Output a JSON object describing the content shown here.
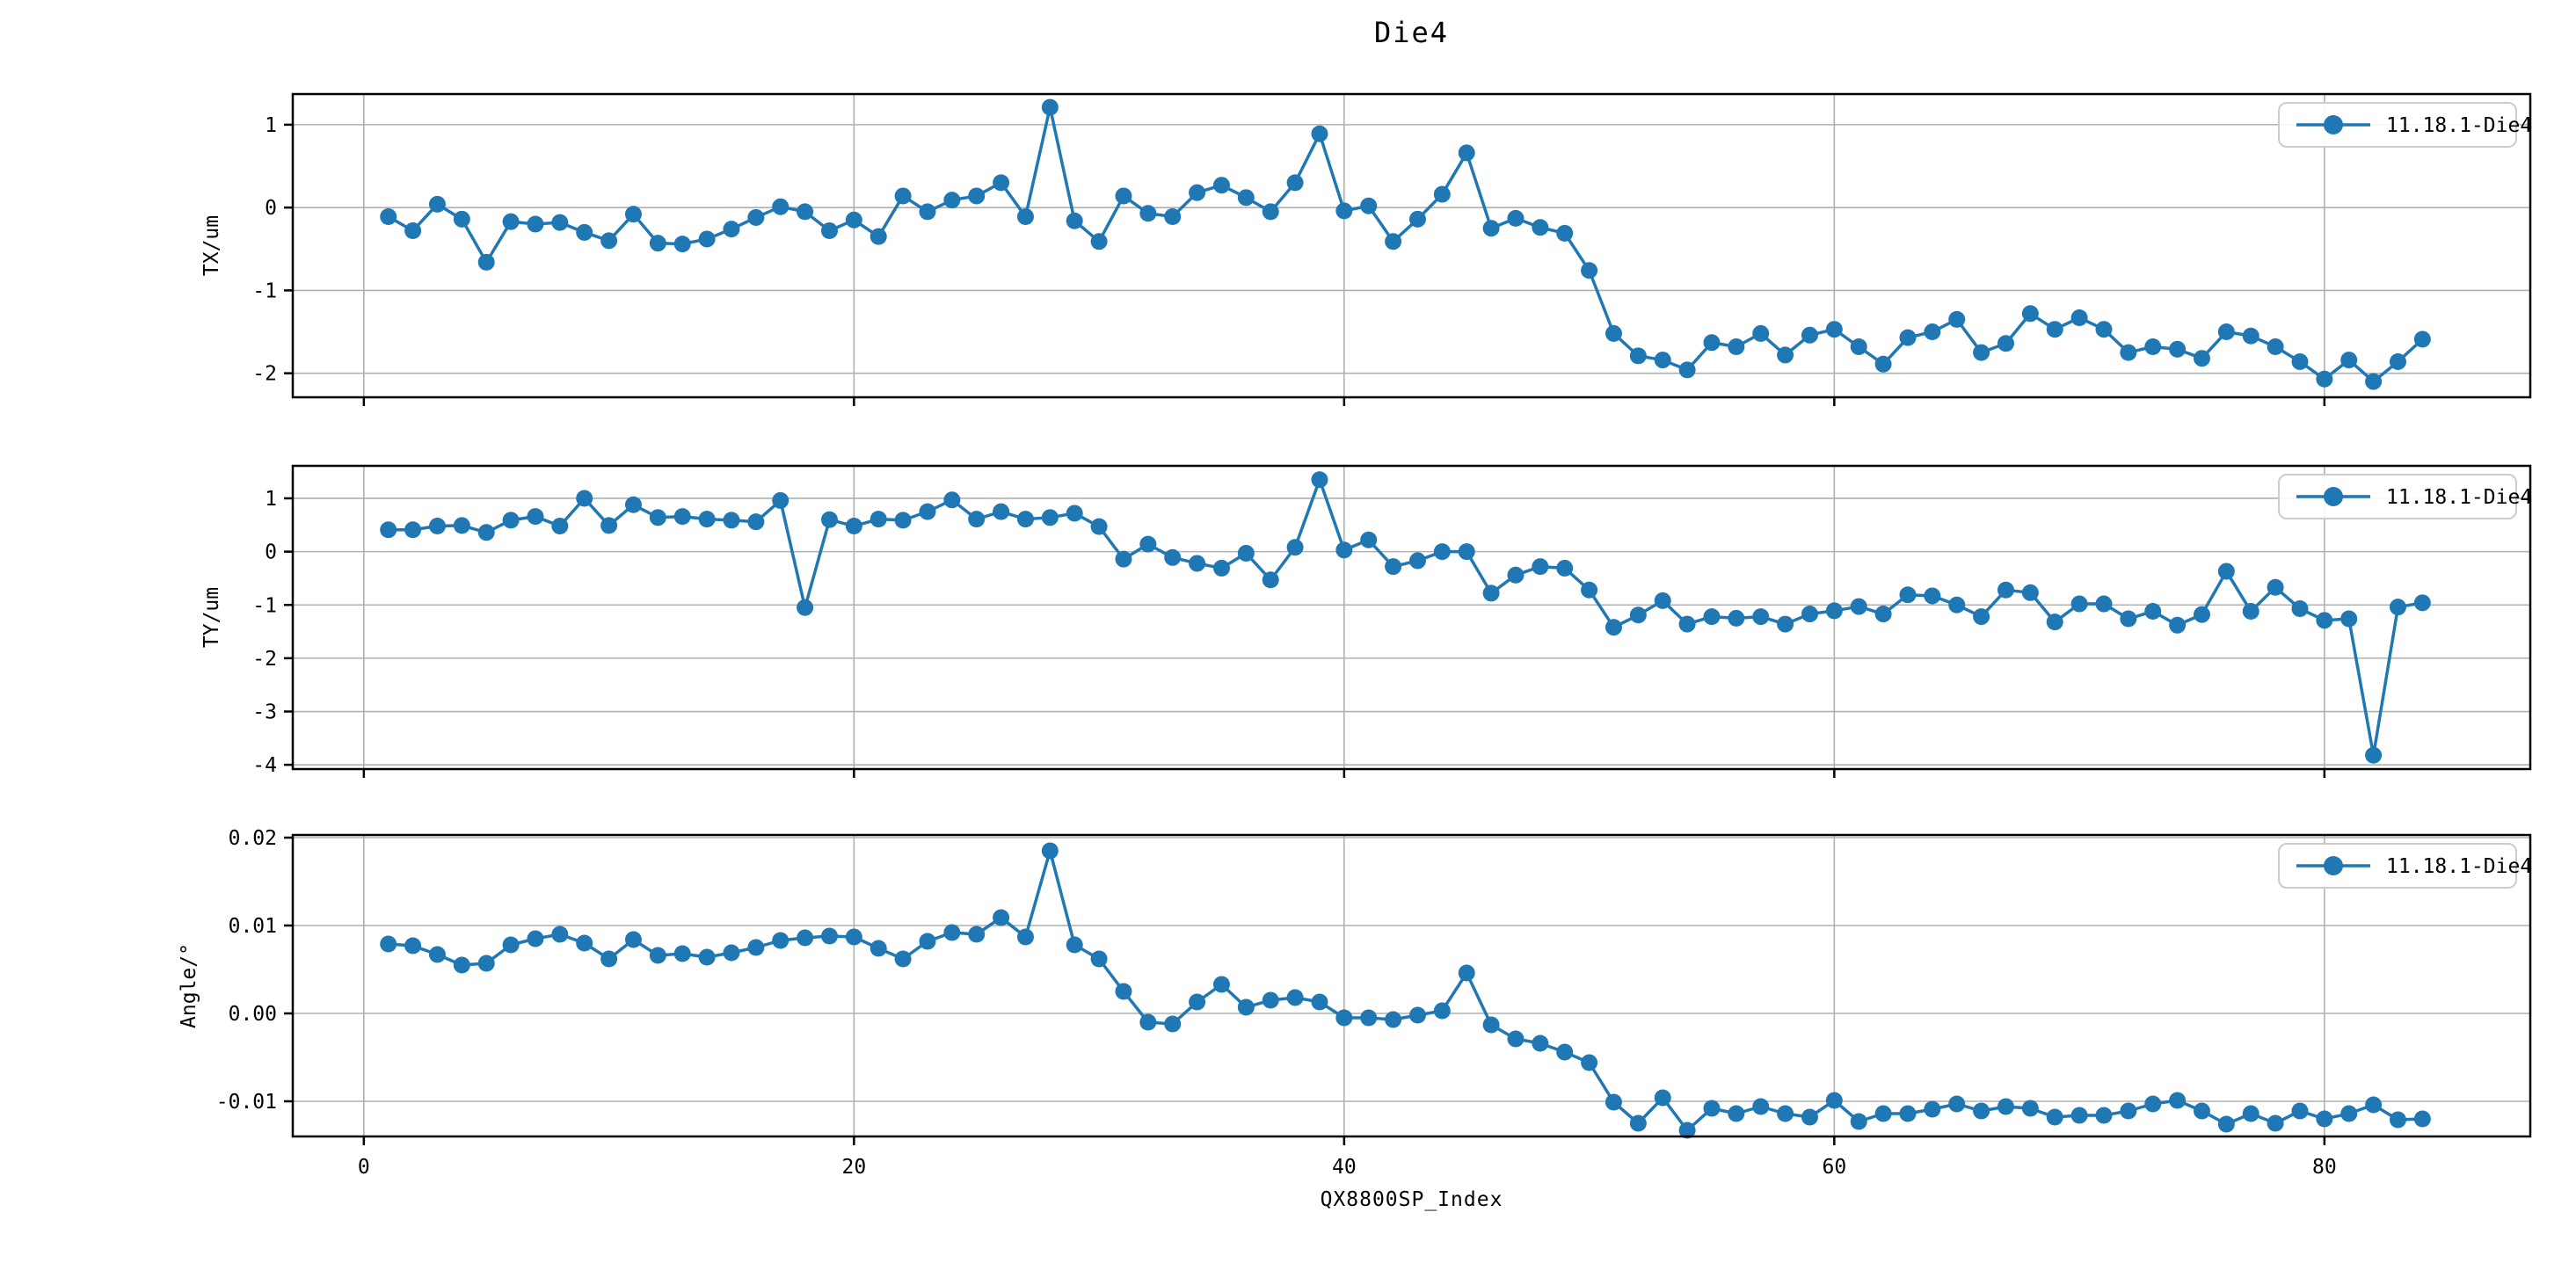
{
  "figure": {
    "title": "Die4",
    "xlabel": "QX8800SP_Index",
    "legend_label": "11.18.1-Die4",
    "colors": {
      "line": "#1f77b4",
      "grid": "#b0b0b0",
      "frame": "#000000",
      "text": "#000000",
      "legend_border": "#cccccc",
      "background": "#ffffff"
    }
  },
  "chart_data": [
    {
      "type": "line",
      "name": "TX",
      "title": "Die4",
      "ylabel": "TX/um",
      "legend": "11.18.1-Die4",
      "x_range": [
        1,
        84
      ],
      "x_ticks": [
        "0",
        "20",
        "40",
        "60",
        "80"
      ],
      "x_tick_values": [
        0,
        20,
        40,
        60,
        80
      ],
      "xlim": [
        -2.9,
        88.4
      ],
      "y_ticks": [
        "1",
        "0",
        "-1",
        "-2"
      ],
      "y_tick_values": [
        1,
        0,
        -1,
        -2
      ],
      "ylim": [
        -2.29,
        1.37
      ],
      "grid": true,
      "legend_position": "upper right",
      "values": [
        -0.11,
        -0.28,
        0.04,
        -0.14,
        -0.66,
        -0.17,
        -0.2,
        -0.18,
        -0.3,
        -0.4,
        -0.08,
        -0.43,
        -0.44,
        -0.38,
        -0.26,
        -0.12,
        0.01,
        -0.05,
        -0.28,
        -0.15,
        -0.35,
        0.14,
        -0.05,
        0.09,
        0.14,
        0.3,
        -0.11,
        1.21,
        -0.16,
        -0.41,
        0.14,
        -0.07,
        -0.11,
        0.18,
        0.27,
        0.12,
        -0.05,
        0.3,
        0.89,
        -0.04,
        0.02,
        -0.41,
        -0.14,
        0.16,
        0.66,
        -0.25,
        -0.13,
        -0.24,
        -0.31,
        -0.76,
        -1.52,
        -1.79,
        -1.84,
        -1.96,
        -1.63,
        -1.68,
        -1.52,
        -1.78,
        -1.54,
        -1.47,
        -1.68,
        -1.89,
        -1.57,
        -1.5,
        -1.35,
        -1.75,
        -1.64,
        -1.28,
        -1.47,
        -1.33,
        -1.47,
        -1.75,
        -1.68,
        -1.71,
        -1.82,
        -1.5,
        -1.55,
        -1.68,
        -1.86,
        -2.07,
        -1.84,
        -2.1,
        -1.86,
        -1.59
      ]
    },
    {
      "type": "line",
      "name": "TY",
      "title": "Die4",
      "ylabel": "TY/um",
      "legend": "11.18.1-Die4",
      "x_range": [
        1,
        84
      ],
      "x_ticks": [
        "0",
        "20",
        "40",
        "60",
        "80"
      ],
      "x_tick_values": [
        0,
        20,
        40,
        60,
        80
      ],
      "xlim": [
        -2.9,
        88.4
      ],
      "y_ticks": [
        "1",
        "0",
        "-1",
        "-2",
        "-3",
        "-4"
      ],
      "y_tick_values": [
        1,
        0,
        -1,
        -2,
        -3,
        -4
      ],
      "ylim": [
        -4.08,
        1.61
      ],
      "grid": true,
      "legend_position": "upper right",
      "values": [
        0.41,
        0.41,
        0.48,
        0.49,
        0.36,
        0.59,
        0.66,
        0.48,
        1.0,
        0.49,
        0.88,
        0.64,
        0.66,
        0.61,
        0.59,
        0.56,
        0.96,
        -1.05,
        0.6,
        0.48,
        0.61,
        0.59,
        0.75,
        0.97,
        0.61,
        0.75,
        0.61,
        0.64,
        0.72,
        0.47,
        -0.14,
        0.14,
        -0.11,
        -0.22,
        -0.31,
        -0.03,
        -0.53,
        0.08,
        1.35,
        0.03,
        0.22,
        -0.28,
        -0.17,
        0.0,
        0.0,
        -0.78,
        -0.44,
        -0.28,
        -0.31,
        -0.72,
        -1.42,
        -1.19,
        -0.92,
        -1.36,
        -1.22,
        -1.25,
        -1.22,
        -1.36,
        -1.17,
        -1.11,
        -1.03,
        -1.17,
        -0.81,
        -0.83,
        -1.0,
        -1.22,
        -0.72,
        -0.77,
        -1.32,
        -0.98,
        -0.98,
        -1.26,
        -1.12,
        -1.38,
        -1.18,
        -0.37,
        -1.12,
        -0.67,
        -1.07,
        -1.29,
        -1.26,
        -3.82,
        -1.04,
        -0.96
      ]
    },
    {
      "type": "line",
      "name": "Angle",
      "title": "Die4",
      "ylabel": "Angle/°",
      "xlabel": "QX8800SP_Index",
      "legend": "11.18.1-Die4",
      "x_range": [
        1,
        84
      ],
      "x_ticks": [
        "0",
        "20",
        "40",
        "60",
        "80"
      ],
      "x_tick_values": [
        0,
        20,
        40,
        60,
        80
      ],
      "xlim": [
        -2.9,
        88.4
      ],
      "y_ticks": [
        "0.02",
        "0.01",
        "0.00",
        "-0.01"
      ],
      "y_tick_values": [
        0.02,
        0.01,
        0.0,
        -0.01
      ],
      "ylim": [
        -0.014,
        0.0203
      ],
      "grid": true,
      "legend_position": "upper right",
      "show_x_tick_labels": true,
      "values": [
        0.0079,
        0.0077,
        0.0067,
        0.0055,
        0.0057,
        0.0078,
        0.0085,
        0.009,
        0.008,
        0.0062,
        0.0084,
        0.0066,
        0.0068,
        0.0064,
        0.0069,
        0.0075,
        0.0083,
        0.0086,
        0.0088,
        0.0087,
        0.0074,
        0.0062,
        0.0082,
        0.0092,
        0.009,
        0.0109,
        0.0087,
        0.0185,
        0.0078,
        0.0062,
        0.0025,
        -0.001,
        -0.0012,
        0.0013,
        0.0033,
        0.0007,
        0.0015,
        0.0018,
        0.0013,
        -0.0005,
        -0.0005,
        -0.0007,
        -0.0002,
        0.0003,
        0.0046,
        -0.0013,
        -0.0029,
        -0.0034,
        -0.0044,
        -0.0056,
        -0.0101,
        -0.0125,
        -0.0096,
        -0.0133,
        -0.0108,
        -0.0114,
        -0.0106,
        -0.0114,
        -0.0118,
        -0.0099,
        -0.0123,
        -0.0114,
        -0.0114,
        -0.0109,
        -0.0103,
        -0.0111,
        -0.0106,
        -0.0108,
        -0.0118,
        -0.0116,
        -0.0116,
        -0.0111,
        -0.0103,
        -0.0099,
        -0.0111,
        -0.0126,
        -0.0114,
        -0.0125,
        -0.0111,
        -0.012,
        -0.0114,
        -0.0104,
        -0.0121,
        -0.012
      ]
    }
  ]
}
